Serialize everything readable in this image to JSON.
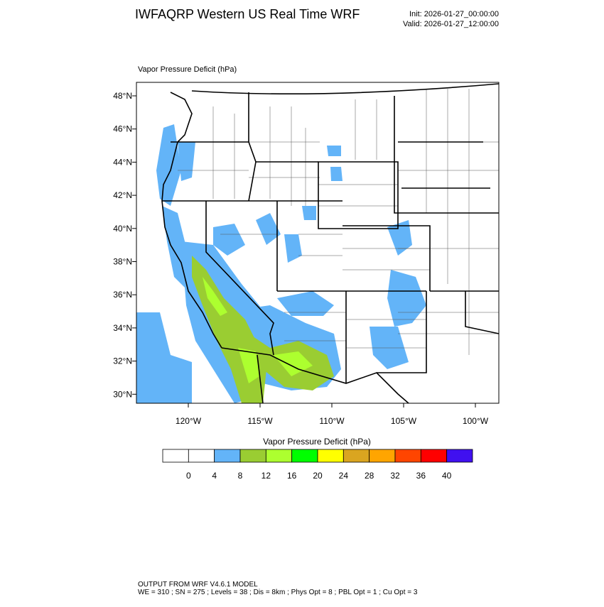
{
  "header": {
    "title": "IWFAQRP Western US Real Time WRF",
    "init": "Init: 2026-01-27_00:00:00",
    "valid": "Valid: 2026-01-27_12:00:00"
  },
  "map": {
    "field_label": "Vapor Pressure Deficit   (hPa)",
    "lat_labels": [
      "48°N",
      "46°N",
      "44°N",
      "42°N",
      "40°N",
      "38°N",
      "36°N",
      "34°N",
      "32°N",
      "30°N"
    ],
    "lon_labels": [
      "120°W",
      "115°W",
      "110°W",
      "105°W",
      "100°W"
    ]
  },
  "colorbar": {
    "title": "Vapor Pressure Deficit  (hPa)",
    "colors": [
      "#ffffff",
      "#ffffff",
      "#63b4f8",
      "#9acd32",
      "#adff2f",
      "#00ff00",
      "#ffff00",
      "#daa520",
      "#ffa500",
      "#ff4500",
      "#ff0000",
      "#4010f0"
    ],
    "labels": [
      "0",
      "4",
      "8",
      "12",
      "16",
      "20",
      "24",
      "28",
      "32",
      "36",
      "40"
    ]
  },
  "footer": {
    "line1": "OUTPUT FROM WRF V4.6.1 MODEL",
    "line2": "WE = 310 ; SN = 275 ; Levels = 38 ; Dis = 8km ; Phys Opt = 8 ; PBL Opt = 1 ; Cu Opt = 3"
  }
}
